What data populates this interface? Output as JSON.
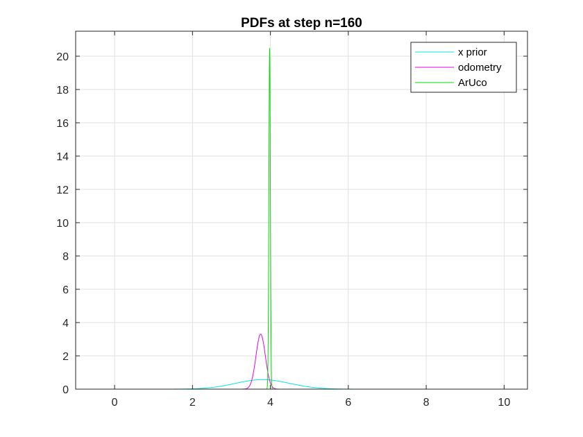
{
  "chart_data": {
    "type": "line",
    "title": "PDFs at step n=160",
    "xlabel": "",
    "ylabel": "",
    "xlim": [
      -1,
      10.6
    ],
    "ylim": [
      0,
      21.5
    ],
    "xticks": [
      0,
      2,
      4,
      6,
      8,
      10
    ],
    "yticks": [
      0,
      2,
      4,
      6,
      8,
      10,
      12,
      14,
      16,
      18,
      20
    ],
    "grid": true,
    "legend_position": "top-right",
    "series": [
      {
        "name": "x prior",
        "color": "#00e5e5",
        "distribution": "normal",
        "mean": 3.8,
        "std": 0.7,
        "peak": 0.57
      },
      {
        "name": "odometry",
        "color": "#e500e5",
        "distribution": "normal",
        "mean": 3.75,
        "std": 0.12,
        "peak": 3.3
      },
      {
        "name": "ArUco",
        "color": "#00dd00",
        "distribution": "normal",
        "mean": 3.98,
        "std": 0.019,
        "peak": 20.5
      }
    ]
  }
}
